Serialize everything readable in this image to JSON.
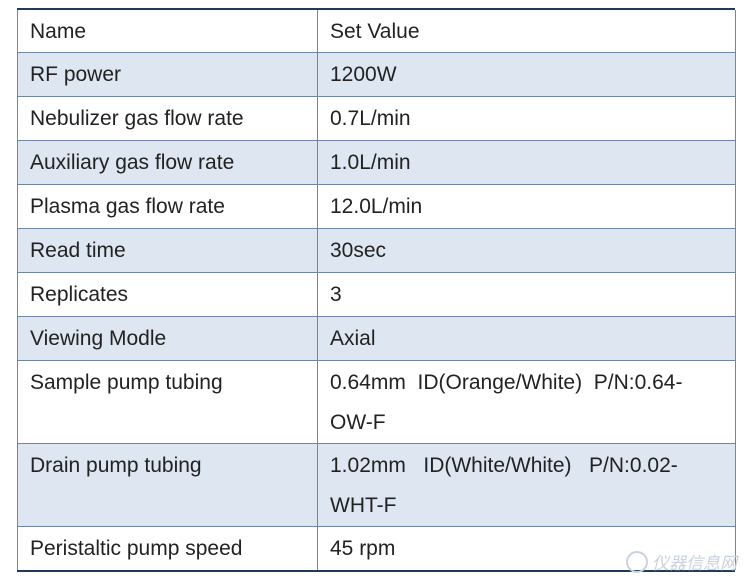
{
  "table": {
    "header": {
      "name": "Name",
      "value": "Set Value"
    },
    "rows": [
      {
        "name": "RF power",
        "value": "1200W"
      },
      {
        "name": "Nebulizer gas flow rate",
        "value": "0.7L/min"
      },
      {
        "name": "Auxiliary gas flow rate",
        "value": "1.0L/min"
      },
      {
        "name": "Plasma gas flow rate",
        "value": "12.0L/min"
      },
      {
        "name": "Read time",
        "value": "30sec"
      },
      {
        "name": "Replicates",
        "value": "3"
      },
      {
        "name": "Viewing Modle",
        "value": "Axial"
      },
      {
        "name": "Sample pump tubing",
        "value": "0.64mm  ID(Orange/White)  P/N:0.64-\nOW-F"
      },
      {
        "name": "Drain pump tubing",
        "value": "1.02mm   ID(White/White)   P/N:0.02-\nWHT-F"
      },
      {
        "name": "Peristaltic pump speed",
        "value": "45 rpm"
      }
    ]
  },
  "colors": {
    "shade": "#dde6f1",
    "border": "#1f3a5a"
  },
  "watermark": {
    "text": "仪器信息网",
    "icon": "logo-icon"
  }
}
